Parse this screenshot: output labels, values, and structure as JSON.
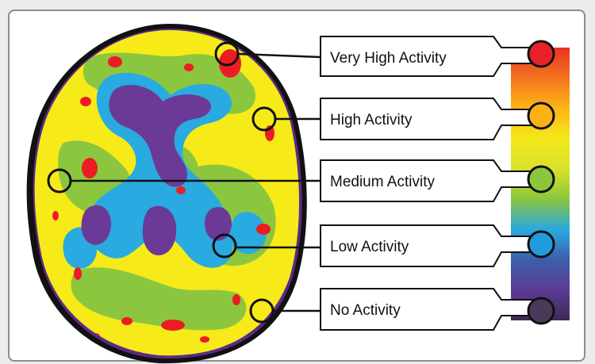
{
  "scale": {
    "gradient_colors": [
      "#e83222",
      "#f37521",
      "#fcb414",
      "#f5e91b",
      "#d8e22a",
      "#8cc63f",
      "#29a9e0",
      "#3b5fa9",
      "#5d3b95",
      "#3d2a55"
    ]
  },
  "legend": [
    {
      "label": "Very High Activity",
      "color": "#e8222a"
    },
    {
      "label": "High Activity",
      "color": "#fbb116"
    },
    {
      "label": "Medium Activity",
      "color": "#8cc63f"
    },
    {
      "label": "Low Activity",
      "color": "#1f9bde"
    },
    {
      "label": "No Activity",
      "color": "#4a3a5a"
    }
  ],
  "brain": {
    "outline_color": "#5b2a86",
    "colors": {
      "high": "#f7ea19",
      "medium": "#8cc63f",
      "low": "#29aae1",
      "none": "#6a3a96",
      "very_high": "#ec1c24"
    }
  }
}
